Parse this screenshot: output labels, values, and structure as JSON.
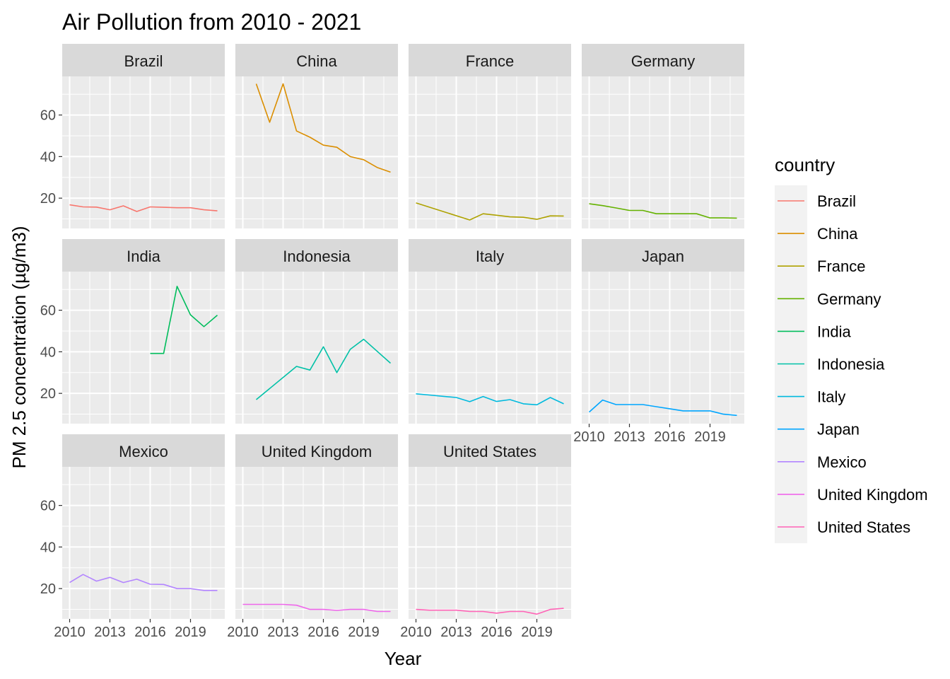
{
  "chart_data": {
    "type": "line",
    "title": "Air Pollution from 2010 - 2021",
    "xlabel": "Year",
    "ylabel": "PM 2.5 concentration (µg/m3)",
    "xlim": [
      2010,
      2021
    ],
    "ylim": [
      9,
      75
    ],
    "x_ticks": [
      2010,
      2013,
      2016,
      2019
    ],
    "x_tick_labels": [
      "2010",
      "2013",
      "2016",
      "2019"
    ],
    "y_ticks": [
      20,
      40,
      60
    ],
    "y_tick_labels": [
      "20",
      "40",
      "60"
    ],
    "facet_layout": {
      "columns": 4,
      "rows": 3
    },
    "legend_title": "country",
    "legend_position": "right",
    "grid": true,
    "series": [
      {
        "name": "Brazil",
        "color": "#F8766D",
        "x": [
          2010,
          2011,
          2012,
          2013,
          2014,
          2015,
          2016,
          2017,
          2018,
          2019,
          2020,
          2021
        ],
        "y": [
          16.8,
          15.8,
          15.7,
          14.4,
          16.3,
          13.6,
          15.8,
          15.6,
          15.4,
          15.4,
          14.4,
          13.9
        ]
      },
      {
        "name": "China",
        "color": "#DB8E00",
        "x": [
          2011,
          2012,
          2013,
          2014,
          2015,
          2016,
          2017,
          2018,
          2019,
          2020,
          2021
        ],
        "y": [
          75.0,
          56.5,
          75.0,
          52.3,
          49.3,
          45.5,
          44.5,
          40.0,
          38.5,
          34.8,
          32.5
        ]
      },
      {
        "name": "France",
        "color": "#AEA200",
        "x": [
          2010,
          2014,
          2015,
          2016,
          2017,
          2018,
          2019,
          2020,
          2021
        ],
        "y": [
          17.7,
          9.5,
          12.5,
          11.8,
          11.0,
          10.8,
          9.8,
          11.5,
          11.4
        ]
      },
      {
        "name": "Germany",
        "color": "#64B200",
        "x": [
          2010,
          2011,
          2012,
          2013,
          2014,
          2015,
          2016,
          2017,
          2018,
          2019,
          2020,
          2021
        ],
        "y": [
          17.3,
          16.4,
          15.3,
          14.1,
          14.1,
          12.5,
          12.5,
          12.5,
          12.5,
          10.5,
          10.5,
          10.4
        ]
      },
      {
        "name": "India",
        "color": "#00BD5C",
        "x": [
          2016,
          2017,
          2018,
          2019,
          2020,
          2021
        ],
        "y": [
          39.2,
          39.2,
          71.5,
          57.8,
          52.1,
          57.6
        ]
      },
      {
        "name": "Indonesia",
        "color": "#00C1A7",
        "x": [
          2011,
          2014,
          2015,
          2016,
          2017,
          2018,
          2019,
          2021
        ],
        "y": [
          17.0,
          33.0,
          31.2,
          42.4,
          30.0,
          41.2,
          46.0,
          34.5
        ]
      },
      {
        "name": "Italy",
        "color": "#00BADE",
        "x": [
          2010,
          2011,
          2012,
          2013,
          2014,
          2015,
          2016,
          2017,
          2018,
          2019,
          2020,
          2021
        ],
        "y": [
          19.8,
          19.2,
          18.6,
          18.0,
          16.0,
          18.5,
          16.1,
          17.0,
          15.0,
          14.5,
          18.0,
          15.0
        ]
      },
      {
        "name": "Japan",
        "color": "#00A6FF",
        "x": [
          2010,
          2011,
          2012,
          2013,
          2014,
          2015,
          2016,
          2017,
          2018,
          2019,
          2020,
          2021
        ],
        "y": [
          11.0,
          16.8,
          14.6,
          14.6,
          14.6,
          13.6,
          12.6,
          11.6,
          11.6,
          11.6,
          10.0,
          9.4
        ]
      },
      {
        "name": "Mexico",
        "color": "#B385FF",
        "x": [
          2010,
          2011,
          2012,
          2013,
          2014,
          2015,
          2016,
          2017,
          2018,
          2019,
          2020,
          2021
        ],
        "y": [
          22.9,
          26.8,
          23.6,
          25.4,
          22.9,
          24.5,
          22.1,
          22.0,
          20.0,
          20.0,
          19.1,
          19.1
        ]
      },
      {
        "name": "United Kingdom",
        "color": "#EF67EB",
        "x": [
          2010,
          2011,
          2012,
          2013,
          2014,
          2015,
          2016,
          2017,
          2018,
          2019,
          2020,
          2021
        ],
        "y": [
          12.4,
          12.4,
          12.4,
          12.4,
          12.0,
          10.0,
          10.0,
          9.5,
          10.0,
          10.0,
          9.0,
          9.0
        ]
      },
      {
        "name": "United States",
        "color": "#FF63B6",
        "x": [
          2010,
          2011,
          2012,
          2013,
          2014,
          2015,
          2016,
          2017,
          2018,
          2019,
          2020,
          2021
        ],
        "y": [
          10.0,
          9.6,
          9.6,
          9.6,
          9.0,
          9.0,
          8.2,
          9.0,
          9.0,
          7.7,
          10.0,
          10.5
        ]
      }
    ]
  }
}
